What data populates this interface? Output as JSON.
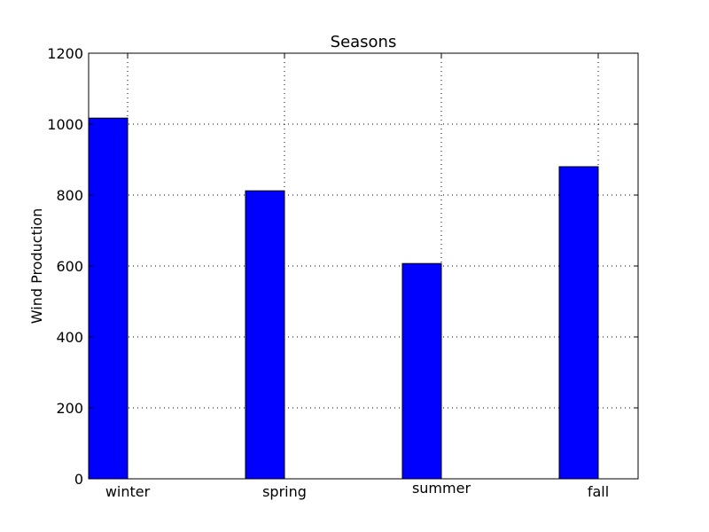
{
  "chart_data": {
    "type": "bar",
    "title": "Seasons",
    "xlabel": "",
    "ylabel": "Wind Production",
    "categories": [
      "winter",
      "spring",
      "summer",
      "fall"
    ],
    "values": [
      1017,
      812,
      607,
      880
    ],
    "ylim": [
      0,
      1200
    ],
    "yticks": [
      "0",
      "200",
      "400",
      "600",
      "800",
      "1000",
      "1200"
    ],
    "grid": true,
    "bar_color": "#0000ff",
    "bar_edge_color": "#000000"
  }
}
